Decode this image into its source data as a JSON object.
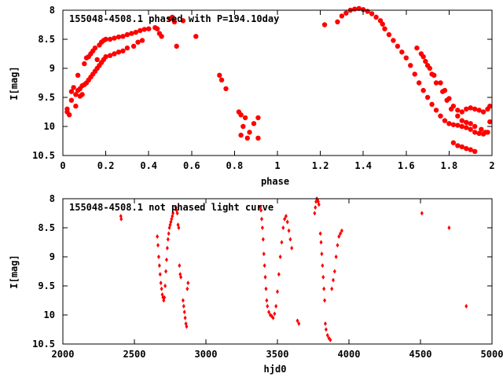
{
  "chart_data": [
    {
      "type": "scatter",
      "title": "155048-4508.1 phased with P=194.10day",
      "xlabel": "phase",
      "ylabel": "I[mag]",
      "xlim": [
        0,
        2
      ],
      "ylim": [
        10.5,
        8
      ],
      "y_inverted": true,
      "grid": false,
      "legend": "none",
      "marker_color": "#ff0000",
      "marker": "filled-circle",
      "xticks": [
        0,
        0.2,
        0.4,
        0.6,
        0.8,
        1,
        1.2,
        1.4,
        1.6,
        1.8,
        2
      ],
      "xtick_labels": [
        "0",
        "0.2",
        "0.4",
        "0.6",
        "0.8",
        "1",
        "1.2",
        "1.4",
        "1.6",
        "1.8",
        "2"
      ],
      "yticks": [
        8,
        8.5,
        9,
        9.5,
        10,
        10.5
      ],
      "ytick_labels": [
        "8",
        "8.5",
        "9",
        "9.5",
        "10",
        "10.5"
      ],
      "x": [
        0.02,
        0.03,
        0.04,
        0.05,
        0.06,
        0.07,
        0.08,
        0.09,
        0.1,
        0.11,
        0.12,
        0.13,
        0.14,
        0.15,
        0.16,
        0.17,
        0.18,
        0.19,
        0.2,
        0.22,
        0.24,
        0.26,
        0.28,
        0.3,
        0.32,
        0.34,
        0.36,
        0.38,
        0.4,
        0.02,
        0.04,
        0.06,
        0.07,
        0.08,
        0.09,
        0.1,
        0.11,
        0.12,
        0.13,
        0.14,
        0.15,
        0.16,
        0.17,
        0.18,
        0.19,
        0.2,
        0.22,
        0.24,
        0.26,
        0.28,
        0.3,
        0.33,
        0.35,
        0.37,
        0.43,
        0.44,
        0.45,
        0.46,
        0.5,
        0.51,
        0.52,
        0.56,
        0.62,
        0.73,
        0.74,
        0.76,
        0.82,
        0.83,
        0.84,
        0.85,
        0.87,
        0.89,
        0.91,
        0.83,
        0.91,
        0.86,
        0.53,
        1.22,
        1.28,
        1.3,
        1.32,
        1.34,
        1.36,
        1.38,
        1.4,
        1.42,
        1.44,
        1.46,
        1.48,
        1.49,
        1.5,
        1.52,
        1.54,
        1.56,
        1.58,
        1.6,
        1.62,
        1.64,
        1.66,
        1.68,
        1.7,
        1.72,
        1.74,
        1.76,
        1.78,
        1.8,
        1.82,
        1.84,
        1.86,
        1.88,
        1.9,
        1.92,
        1.94,
        1.96,
        1.98,
        1.99,
        1.65,
        1.67,
        1.69,
        1.71,
        1.73,
        1.76,
        1.78,
        1.8,
        1.82,
        1.84,
        1.86,
        1.88,
        1.9,
        1.92,
        1.94,
        1.96,
        1.98,
        1.99,
        1.68,
        1.7,
        1.72,
        1.74,
        1.77,
        1.79,
        1.81,
        1.84,
        1.86,
        1.88,
        1.9,
        1.92,
        1.95,
        1.97,
        1.82,
        1.84,
        1.86,
        1.88,
        1.9,
        1.92
      ],
      "y": [
        9.75,
        9.8,
        9.4,
        9.33,
        9.65,
        9.12,
        9.48,
        9.45,
        8.92,
        8.82,
        8.8,
        8.75,
        8.7,
        8.65,
        8.85,
        8.6,
        8.55,
        8.52,
        8.5,
        8.5,
        8.48,
        8.46,
        8.45,
        8.42,
        8.4,
        8.38,
        8.35,
        8.33,
        8.32,
        9.7,
        9.55,
        9.45,
        9.38,
        9.35,
        9.3,
        9.28,
        9.25,
        9.2,
        9.15,
        9.1,
        9.05,
        9.0,
        8.95,
        8.9,
        8.85,
        8.8,
        8.78,
        8.75,
        8.72,
        8.7,
        8.65,
        8.62,
        8.55,
        8.52,
        8.3,
        8.32,
        8.4,
        8.45,
        8.15,
        8.12,
        8.2,
        8.18,
        8.45,
        9.12,
        9.2,
        9.35,
        9.75,
        9.8,
        10.0,
        9.85,
        10.1,
        9.95,
        10.2,
        10.15,
        9.85,
        10.2,
        8.62,
        8.25,
        8.2,
        8.1,
        8.05,
        8.0,
        7.98,
        7.97,
        7.99,
        8.02,
        8.06,
        8.12,
        8.18,
        8.24,
        8.32,
        8.42,
        8.52,
        8.62,
        8.72,
        8.82,
        8.95,
        9.1,
        9.25,
        9.38,
        9.5,
        9.62,
        9.72,
        9.82,
        9.9,
        9.95,
        9.97,
        9.98,
        10.0,
        10.02,
        10.05,
        10.1,
        10.12,
        10.13,
        10.1,
        9.92,
        8.65,
        8.75,
        8.88,
        9.0,
        9.12,
        9.25,
        9.38,
        9.52,
        9.65,
        9.72,
        9.75,
        9.7,
        9.68,
        9.7,
        9.72,
        9.75,
        9.7,
        9.65,
        8.8,
        8.95,
        9.1,
        9.25,
        9.4,
        9.55,
        9.7,
        9.82,
        9.9,
        9.93,
        9.95,
        10.0,
        10.05,
        10.1,
        10.28,
        10.33,
        10.35,
        10.38,
        10.4,
        10.43
      ]
    },
    {
      "type": "scatter",
      "title": "155048-4508.1 not phased light curve",
      "xlabel": "hjd0",
      "ylabel": "I[mag]",
      "xlim": [
        2000,
        5000
      ],
      "ylim": [
        10.5,
        8
      ],
      "y_inverted": true,
      "grid": false,
      "legend": "none",
      "marker_color": "#ff0000",
      "marker": "filled-diamond",
      "xticks": [
        2000,
        2500,
        3000,
        3500,
        4000,
        4500,
        5000
      ],
      "xtick_labels": [
        "2000",
        "2500",
        "3000",
        "3500",
        "4000",
        "4500",
        "5000"
      ],
      "yticks": [
        8,
        8.5,
        9,
        9.5,
        10,
        10.5
      ],
      "ytick_labels": [
        "8",
        "8.5",
        "9",
        "9.5",
        "10",
        "10.5"
      ],
      "x": [
        2405,
        2408,
        2660,
        2665,
        2670,
        2675,
        2680,
        2685,
        2690,
        2695,
        2700,
        2705,
        2710,
        2715,
        2720,
        2725,
        2730,
        2735,
        2740,
        2745,
        2750,
        2755,
        2760,
        2765,
        2770,
        2790,
        2795,
        2800,
        2805,
        2810,
        2815,
        2820,
        2825,
        2840,
        2845,
        2850,
        2855,
        2860,
        2865,
        2870,
        2875,
        3380,
        3385,
        3390,
        3395,
        3400,
        3405,
        3410,
        3415,
        3420,
        3425,
        3430,
        3440,
        3450,
        3460,
        3470,
        3480,
        3490,
        3500,
        3510,
        3520,
        3530,
        3540,
        3550,
        3560,
        3570,
        3580,
        3590,
        3600,
        3640,
        3650,
        3760,
        3765,
        3770,
        3775,
        3780,
        3785,
        3790,
        3800,
        3805,
        3810,
        3815,
        3820,
        3825,
        3830,
        3835,
        3840,
        3850,
        3860,
        3870,
        3880,
        3890,
        3900,
        3910,
        3920,
        3930,
        3940,
        3950,
        4510,
        4700,
        4820
      ],
      "y": [
        8.3,
        8.35,
        8.65,
        8.8,
        9.0,
        9.15,
        9.3,
        9.45,
        9.55,
        9.65,
        9.7,
        9.75,
        9.7,
        9.5,
        9.25,
        9.05,
        8.85,
        8.7,
        8.6,
        8.5,
        8.45,
        8.4,
        8.35,
        8.3,
        8.25,
        8.15,
        8.2,
        8.25,
        8.45,
        8.5,
        9.15,
        9.3,
        9.35,
        9.75,
        9.85,
        9.95,
        10.05,
        10.15,
        10.2,
        9.55,
        9.45,
        8.15,
        8.2,
        8.35,
        8.5,
        8.7,
        8.95,
        9.15,
        9.35,
        9.55,
        9.75,
        9.85,
        9.95,
        10.0,
        10.02,
        10.05,
        9.98,
        9.85,
        9.6,
        9.3,
        9.0,
        8.75,
        8.5,
        8.35,
        8.3,
        8.4,
        8.55,
        8.7,
        8.85,
        10.1,
        10.15,
        8.25,
        8.15,
        8.05,
        8.0,
        8.02,
        8.05,
        8.1,
        8.6,
        8.75,
        8.95,
        9.15,
        9.35,
        9.55,
        9.75,
        10.15,
        10.25,
        10.35,
        10.4,
        10.43,
        9.55,
        9.4,
        9.25,
        9.0,
        8.8,
        8.65,
        8.6,
        8.55,
        8.25,
        8.5,
        9.85
      ]
    }
  ]
}
